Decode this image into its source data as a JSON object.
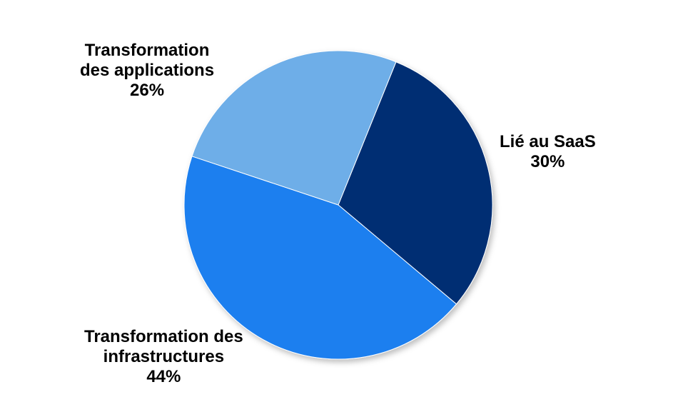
{
  "chart_data": {
    "type": "pie",
    "title": "",
    "slices": [
      {
        "label_lines": [
          "Lié au SaaS"
        ],
        "value": 30,
        "value_label": "30%",
        "color": "#012f73"
      },
      {
        "label_lines": [
          "Transformation des",
          "infrastructures"
        ],
        "value": 44,
        "value_label": "44%",
        "color": "#1a7fef"
      },
      {
        "label_lines": [
          "Transformation",
          "des applications"
        ],
        "value": 26,
        "value_label": "26%",
        "color": "#6eaee8"
      }
    ],
    "start_angle_deg": 22,
    "legend": "none"
  }
}
